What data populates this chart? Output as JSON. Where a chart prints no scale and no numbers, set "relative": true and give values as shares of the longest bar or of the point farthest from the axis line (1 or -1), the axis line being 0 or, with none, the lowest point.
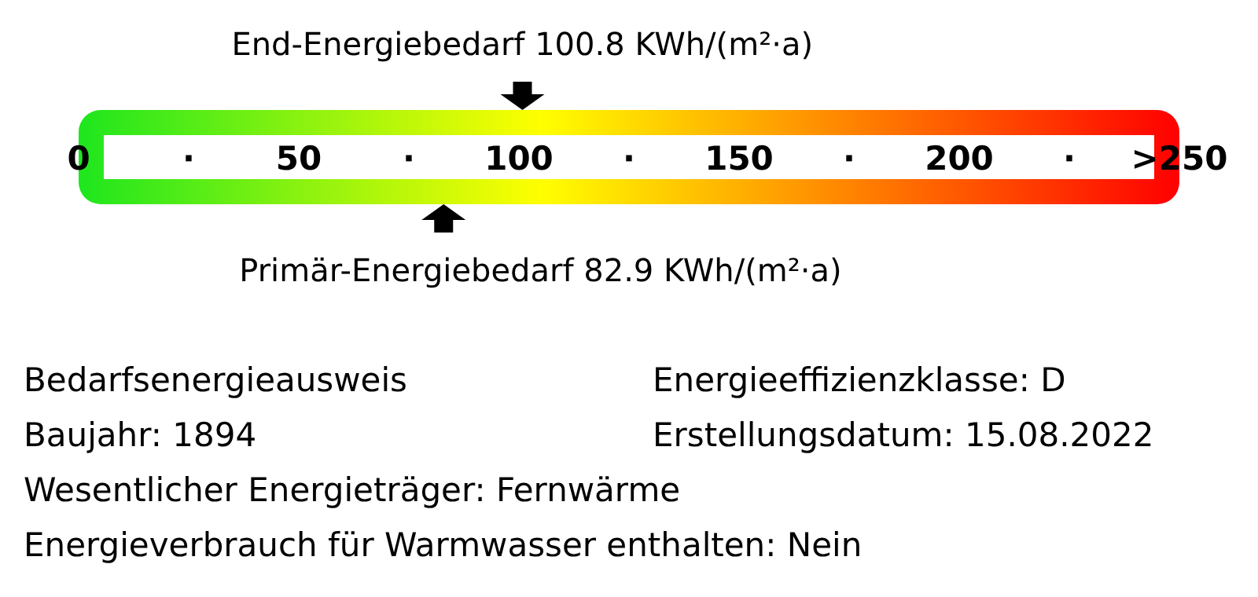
{
  "chart_data": {
    "type": "scatter",
    "relative": true,
    "x": [
      100.8,
      82.9
    ],
    "values": [
      1,
      0
    ],
    "xlim": [
      0,
      250
    ],
    "xticks": [
      0,
      {
        "value": 25,
        "label": "·"
      },
      50,
      {
        "value": 75,
        "label": "·"
      },
      100,
      {
        "value": 125,
        "label": "·"
      },
      150,
      {
        "value": 175,
        "label": "·"
      },
      200,
      {
        "value": 225,
        "label": "·"
      },
      {
        "value": 250,
        "label": ">250"
      }
    ],
    "annotations": [
      {
        "text": "End-Energiebedarf 100.8 KWh/(m²·a)",
        "x": 100.8,
        "y": 1
      },
      {
        "text": "Primär-Energiebedarf 82.9 KWh/(m²·a)",
        "x": 82.9,
        "y": 0
      },
      "Bedarfsenergieausweis",
      "Energieeffizienzklasse: D",
      "Baujahr: 1894",
      "Erstellungsdatum: 15.08.2022",
      "Wesentlicher Energieträger: Fernwärme",
      "Energieverbrauch für Warmwasser enthalten: Nein"
    ]
  }
}
